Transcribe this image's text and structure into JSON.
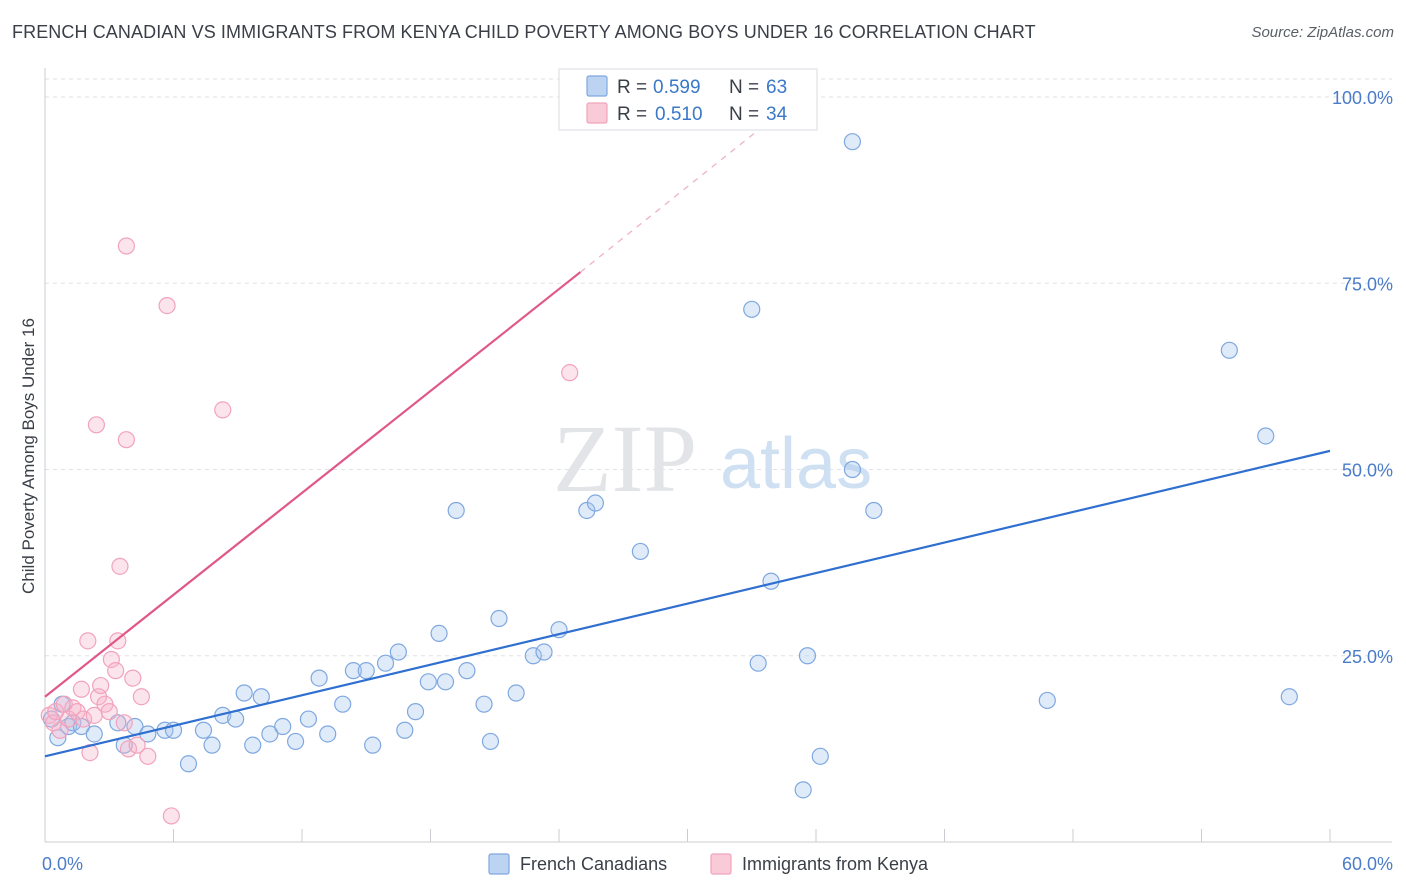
{
  "title": "FRENCH CANADIAN VS IMMIGRANTS FROM KENYA CHILD POVERTY AMONG BOYS UNDER 16 CORRELATION CHART",
  "source": "Source: ZipAtlas.com",
  "watermark": {
    "zip": "ZIP",
    "atlas": "atlas"
  },
  "chart_data": {
    "type": "scatter",
    "xlabel": "",
    "ylabel": "Child Poverty Among Boys Under 16",
    "xlim": [
      0,
      60
    ],
    "ylim": [
      0,
      100
    ],
    "x_tick_labels": [
      {
        "value": 0,
        "label": "0.0%"
      },
      {
        "value": 60,
        "label": "60.0%"
      }
    ],
    "y_tick_labels": [
      {
        "value": 25,
        "label": "25.0%"
      },
      {
        "value": 50,
        "label": "50.0%"
      },
      {
        "value": 75,
        "label": "75.0%"
      },
      {
        "value": 100,
        "label": "100.0%"
      }
    ],
    "legend_stats": [
      {
        "r_label": "R =",
        "r_value": "0.599",
        "n_label": "N =",
        "n_value": "63"
      },
      {
        "r_label": "R =",
        "r_value": "0.510",
        "n_label": "N =",
        "n_value": "34"
      }
    ],
    "series": [
      {
        "name": "French Canadians",
        "color": "#7fa8e0",
        "line_color": "#2f6fd0",
        "trend": {
          "x0": 0,
          "y0": 11.5,
          "x1": 60,
          "y1": 52.5
        },
        "points": [
          [
            0.3,
            16.5
          ],
          [
            0.6,
            14.0
          ],
          [
            0.8,
            18.5
          ],
          [
            1.1,
            15.5
          ],
          [
            1.3,
            16.0
          ],
          [
            1.7,
            15.5
          ],
          [
            2.3,
            14.5
          ],
          [
            3.4,
            16.0
          ],
          [
            3.7,
            13.0
          ],
          [
            4.2,
            15.5
          ],
          [
            4.8,
            14.5
          ],
          [
            5.6,
            15.0
          ],
          [
            6.0,
            15.0
          ],
          [
            6.7,
            10.5
          ],
          [
            7.4,
            15.0
          ],
          [
            7.8,
            13.0
          ],
          [
            8.3,
            17.0
          ],
          [
            8.9,
            16.5
          ],
          [
            9.3,
            20.0
          ],
          [
            9.7,
            13.0
          ],
          [
            10.1,
            19.5
          ],
          [
            10.5,
            14.5
          ],
          [
            11.1,
            15.5
          ],
          [
            11.7,
            13.5
          ],
          [
            12.3,
            16.5
          ],
          [
            12.8,
            22.0
          ],
          [
            13.2,
            14.5
          ],
          [
            13.9,
            18.5
          ],
          [
            14.4,
            23.0
          ],
          [
            15.0,
            23.0
          ],
          [
            15.3,
            13.0
          ],
          [
            15.9,
            24.0
          ],
          [
            16.5,
            25.5
          ],
          [
            16.8,
            15.0
          ],
          [
            17.3,
            17.5
          ],
          [
            17.9,
            21.5
          ],
          [
            18.4,
            28.0
          ],
          [
            18.7,
            21.5
          ],
          [
            19.2,
            44.5
          ],
          [
            19.7,
            23.0
          ],
          [
            20.5,
            18.5
          ],
          [
            20.8,
            13.5
          ],
          [
            21.2,
            30.0
          ],
          [
            22.0,
            20.0
          ],
          [
            22.8,
            25.0
          ],
          [
            23.3,
            25.5
          ],
          [
            24.0,
            28.5
          ],
          [
            25.3,
            44.5
          ],
          [
            25.7,
            45.5
          ],
          [
            27.8,
            39.0
          ],
          [
            33.0,
            71.5
          ],
          [
            33.3,
            24.0
          ],
          [
            33.9,
            35.0
          ],
          [
            35.4,
            7.0
          ],
          [
            35.6,
            25.0
          ],
          [
            36.2,
            11.5
          ],
          [
            37.7,
            50.0
          ],
          [
            37.7,
            94.0
          ],
          [
            38.7,
            44.5
          ],
          [
            46.8,
            19.0
          ],
          [
            55.3,
            66.0
          ],
          [
            57.0,
            54.5
          ],
          [
            58.1,
            19.5
          ]
        ]
      },
      {
        "name": "Immigrants from Kenya",
        "color": "#f2a3bc",
        "line_color": "#e0588a",
        "trend": {
          "x0": 0,
          "y0": 19.5,
          "x1": 25,
          "y1": 76.5
        },
        "trend_dashed": {
          "x0": 25,
          "y0": 76.5,
          "x1": 33.5,
          "y1": 96.0
        },
        "points": [
          [
            0.2,
            17.0
          ],
          [
            0.4,
            16.0
          ],
          [
            0.5,
            17.5
          ],
          [
            0.7,
            15.0
          ],
          [
            0.9,
            18.5
          ],
          [
            1.1,
            16.5
          ],
          [
            1.3,
            18.0
          ],
          [
            1.5,
            17.5
          ],
          [
            1.7,
            20.5
          ],
          [
            1.8,
            16.5
          ],
          [
            2.0,
            27.0
          ],
          [
            2.1,
            12.0
          ],
          [
            2.3,
            17.0
          ],
          [
            2.5,
            19.5
          ],
          [
            2.6,
            21.0
          ],
          [
            2.8,
            18.5
          ],
          [
            3.0,
            17.5
          ],
          [
            3.1,
            24.5
          ],
          [
            3.3,
            23.0
          ],
          [
            3.4,
            27.0
          ],
          [
            3.5,
            37.0
          ],
          [
            3.7,
            16.0
          ],
          [
            3.9,
            12.5
          ],
          [
            4.1,
            22.0
          ],
          [
            4.3,
            13.0
          ],
          [
            4.5,
            19.5
          ],
          [
            4.8,
            11.5
          ],
          [
            2.4,
            56.0
          ],
          [
            3.8,
            54.0
          ],
          [
            3.8,
            80.0
          ],
          [
            5.7,
            72.0
          ],
          [
            8.3,
            58.0
          ],
          [
            24.5,
            63.0
          ],
          [
            5.9,
            3.5
          ]
        ]
      }
    ]
  }
}
